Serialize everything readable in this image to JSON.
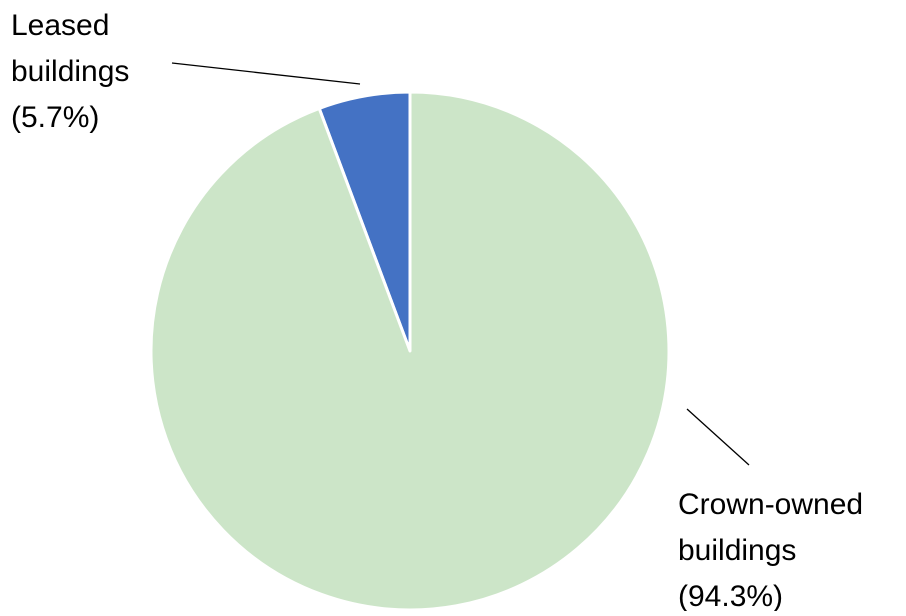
{
  "chart_data": {
    "type": "pie",
    "title": "",
    "series": [
      {
        "values": [
          5.7,
          94.3
        ]
      }
    ],
    "slices": [
      {
        "label_lines": [
          "Leased",
          "buildings",
          "(5.7%)"
        ],
        "value": 5.7,
        "color": "#4472C4"
      },
      {
        "label_lines": [
          "Crown-owned",
          "buildings",
          "(94.3%)"
        ],
        "value": 94.3,
        "color": "#CCE5C8"
      }
    ],
    "start_angle": "12 o'clock",
    "direction": "counter-clockwise for first slice",
    "legend": "none",
    "slice_border_color": "#FFFFFF"
  }
}
